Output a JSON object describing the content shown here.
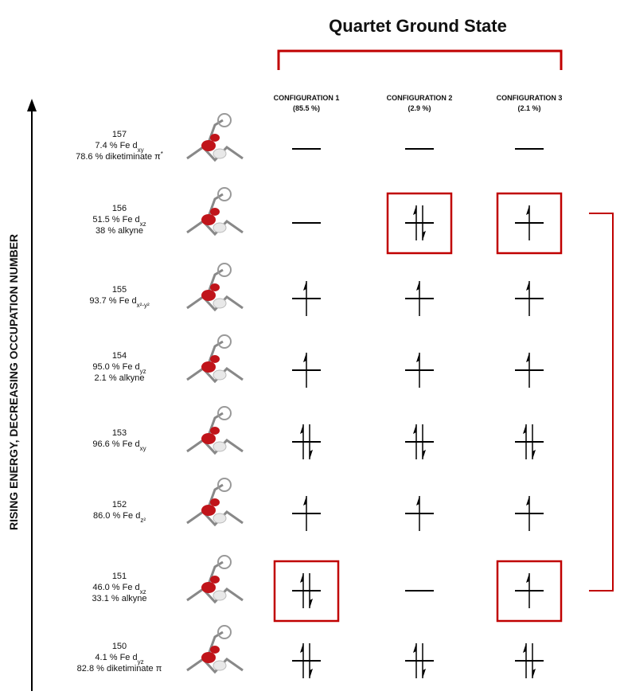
{
  "title": "Quartet Ground State",
  "axis_label": "RISING ENERGY, DECREASING OCCUPATION NUMBER",
  "configurations": [
    {
      "name": "CONFIGURATION 1",
      "weight": "(85.5 %)"
    },
    {
      "name": "CONFIGURATION 2",
      "weight": "(2.9 %)"
    },
    {
      "name": "CONFIGURATION 3",
      "weight": "(2.1 %)"
    }
  ],
  "rows": [
    {
      "number": "157",
      "lines": [
        {
          "text": "7.4 % Fe d",
          "sub": "xy"
        },
        {
          "text": "78.6 % diketiminate π",
          "sup": "*"
        }
      ],
      "cells": [
        {
          "electrons": 0,
          "boxed": false
        },
        {
          "electrons": 0,
          "boxed": false
        },
        {
          "electrons": 0,
          "boxed": false
        }
      ]
    },
    {
      "number": "156",
      "lines": [
        {
          "text": "51.5 % Fe d",
          "sub": "xz"
        },
        {
          "text": "38 % alkyne"
        }
      ],
      "cells": [
        {
          "electrons": 0,
          "boxed": false
        },
        {
          "electrons": 2,
          "boxed": true
        },
        {
          "electrons": 1,
          "boxed": true
        }
      ]
    },
    {
      "number": "155",
      "lines": [
        {
          "text": "93.7 % Fe d",
          "sub": "x²-y²"
        }
      ],
      "cells": [
        {
          "electrons": 1,
          "boxed": false
        },
        {
          "electrons": 1,
          "boxed": false
        },
        {
          "electrons": 1,
          "boxed": false
        }
      ]
    },
    {
      "number": "154",
      "lines": [
        {
          "text": "95.0 % Fe d",
          "sub": "yz"
        },
        {
          "text": "2.1 % alkyne"
        }
      ],
      "cells": [
        {
          "electrons": 1,
          "boxed": false
        },
        {
          "electrons": 1,
          "boxed": false
        },
        {
          "electrons": 1,
          "boxed": false
        }
      ]
    },
    {
      "number": "153",
      "lines": [
        {
          "text": "96.6 % Fe d",
          "sub": "xy"
        }
      ],
      "cells": [
        {
          "electrons": 2,
          "boxed": false
        },
        {
          "electrons": 2,
          "boxed": false
        },
        {
          "electrons": 2,
          "boxed": false
        }
      ]
    },
    {
      "number": "152",
      "lines": [
        {
          "text": "86.0 % Fe d",
          "sub": "z²"
        }
      ],
      "cells": [
        {
          "electrons": 1,
          "boxed": false
        },
        {
          "electrons": 1,
          "boxed": false
        },
        {
          "electrons": 1,
          "boxed": false
        }
      ]
    },
    {
      "number": "151",
      "lines": [
        {
          "text": "46.0 % Fe d",
          "sub": "xz"
        },
        {
          "text": "33.1 % alkyne"
        }
      ],
      "cells": [
        {
          "electrons": 2,
          "boxed": true
        },
        {
          "electrons": 0,
          "boxed": false
        },
        {
          "electrons": 1,
          "boxed": true
        }
      ]
    },
    {
      "number": "150",
      "lines": [
        {
          "text": "4.1 % Fe d",
          "sub": "yz"
        },
        {
          "text": "82.8 % diketiminate π"
        }
      ],
      "cells": [
        {
          "electrons": 2,
          "boxed": false
        },
        {
          "electrons": 2,
          "boxed": false
        },
        {
          "electrons": 2,
          "boxed": false
        }
      ]
    }
  ]
}
